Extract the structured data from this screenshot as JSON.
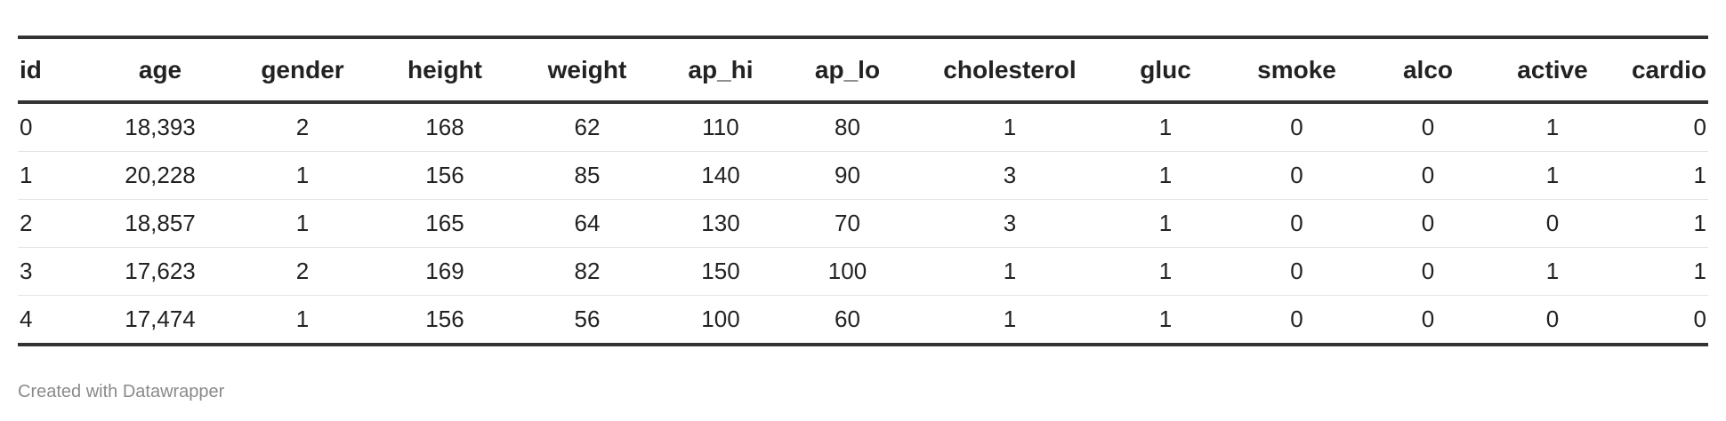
{
  "chart_data": {
    "type": "table",
    "columns": [
      "id",
      "age",
      "gender",
      "height",
      "weight",
      "ap_hi",
      "ap_lo",
      "cholesterol",
      "gluc",
      "smoke",
      "alco",
      "active",
      "cardio"
    ],
    "rows": [
      [
        "0",
        "18,393",
        "2",
        "168",
        "62",
        "110",
        "80",
        "1",
        "1",
        "0",
        "0",
        "1",
        "0"
      ],
      [
        "1",
        "20,228",
        "1",
        "156",
        "85",
        "140",
        "90",
        "3",
        "1",
        "0",
        "0",
        "1",
        "1"
      ],
      [
        "2",
        "18,857",
        "1",
        "165",
        "64",
        "130",
        "70",
        "3",
        "1",
        "0",
        "0",
        "0",
        "1"
      ],
      [
        "3",
        "17,623",
        "2",
        "169",
        "82",
        "150",
        "100",
        "1",
        "1",
        "0",
        "0",
        "1",
        "1"
      ],
      [
        "4",
        "17,474",
        "1",
        "156",
        "56",
        "100",
        "60",
        "1",
        "1",
        "0",
        "0",
        "0",
        "0"
      ]
    ]
  },
  "footer": {
    "credit": "Created with Datawrapper"
  }
}
